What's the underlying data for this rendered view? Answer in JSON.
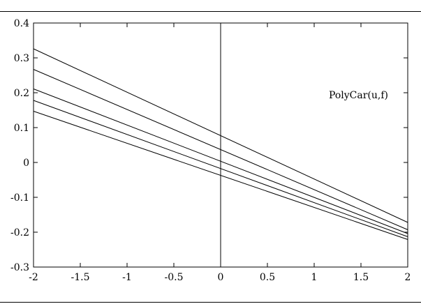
{
  "chart_data": {
    "type": "line",
    "title": "",
    "xlabel": "",
    "ylabel": "",
    "xlim": [
      -2,
      2
    ],
    "ylim": [
      -0.3,
      0.4
    ],
    "grid": false,
    "annotation": "PolyCar(u,f)",
    "x_ticks": [
      "-2",
      "-1.5",
      "-1",
      "-0.5",
      "0",
      "0.5",
      "1",
      "1.5",
      "2"
    ],
    "y_ticks": [
      "0.4",
      "0.3",
      "0.2",
      "0.1",
      "0",
      "-0.1",
      "-0.2",
      "-0.3"
    ],
    "vertical_line_x": 0,
    "series": [
      {
        "x": [
          -2,
          2
        ],
        "values": [
          0.326,
          -0.172
        ]
      },
      {
        "x": [
          -2,
          2
        ],
        "values": [
          0.267,
          -0.193
        ]
      },
      {
        "x": [
          -2,
          2
        ],
        "values": [
          0.211,
          -0.204
        ]
      },
      {
        "x": [
          -2,
          2
        ],
        "values": [
          0.178,
          -0.213
        ]
      },
      {
        "x": [
          -2,
          2
        ],
        "values": [
          0.147,
          -0.221
        ]
      }
    ]
  }
}
